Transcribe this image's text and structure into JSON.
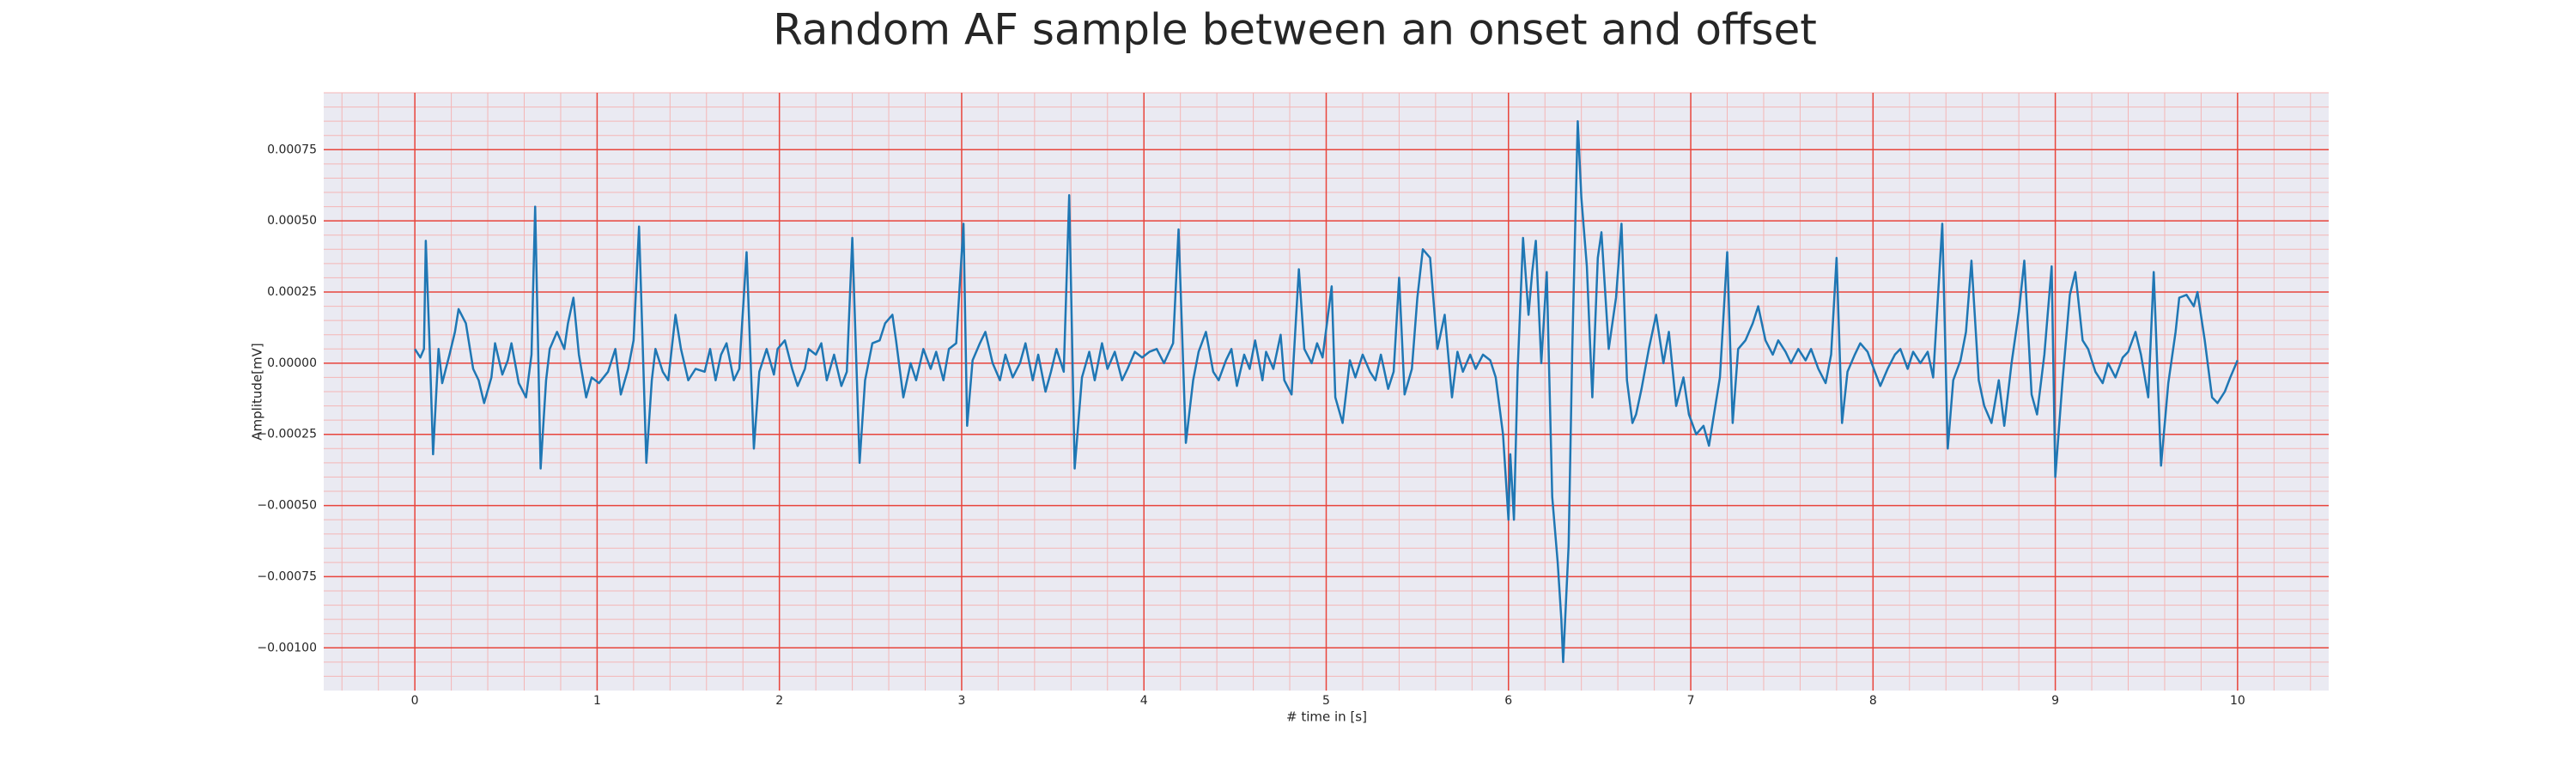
{
  "chart_data": {
    "type": "line",
    "title": "Random AF sample between an onset and offset",
    "xlabel": "# time in [s]",
    "ylabel": "Amplitude[mV]",
    "color": "#1f77b4",
    "grid": true,
    "minor_grid": true,
    "xlim": [
      -0.5,
      10.5
    ],
    "ylim": [
      -0.00115,
      0.00095
    ],
    "xticks": [
      0,
      1,
      2,
      3,
      4,
      5,
      6,
      7,
      8,
      9,
      10
    ],
    "yticks": [
      {
        "value": -0.001,
        "label": "−0.00100"
      },
      {
        "value": -0.00075,
        "label": "−0.00075"
      },
      {
        "value": -0.0005,
        "label": "−0.00050"
      },
      {
        "value": -0.00025,
        "label": "−0.00025"
      },
      {
        "value": 0,
        "label": "0.00000"
      },
      {
        "value": 0.00025,
        "label": "0.00025"
      },
      {
        "value": 0.0005,
        "label": "0.00050"
      },
      {
        "value": 0.00075,
        "label": "0.00075"
      }
    ],
    "x": [
      0,
      0.03,
      0.05,
      0.06,
      0.08,
      0.1,
      0.13,
      0.15,
      0.19,
      0.22,
      0.24,
      0.28,
      0.32,
      0.35,
      0.38,
      0.42,
      0.44,
      0.48,
      0.51,
      0.53,
      0.57,
      0.61,
      0.64,
      0.66,
      0.69,
      0.72,
      0.74,
      0.78,
      0.82,
      0.84,
      0.87,
      0.9,
      0.94,
      0.97,
      1.01,
      1.06,
      1.1,
      1.13,
      1.17,
      1.2,
      1.23,
      1.27,
      1.3,
      1.32,
      1.36,
      1.39,
      1.43,
      1.46,
      1.5,
      1.54,
      1.59,
      1.62,
      1.65,
      1.68,
      1.71,
      1.75,
      1.78,
      1.82,
      1.86,
      1.89,
      1.93,
      1.97,
      1.99,
      2.03,
      2.07,
      2.1,
      2.14,
      2.16,
      2.2,
      2.23,
      2.26,
      2.3,
      2.34,
      2.37,
      2.4,
      2.44,
      2.47,
      2.51,
      2.55,
      2.58,
      2.62,
      2.64,
      2.68,
      2.72,
      2.75,
      2.79,
      2.83,
      2.86,
      2.9,
      2.93,
      2.97,
      3.01,
      3.03,
      3.06,
      3.1,
      3.13,
      3.17,
      3.21,
      3.24,
      3.28,
      3.32,
      3.35,
      3.39,
      3.42,
      3.46,
      3.49,
      3.52,
      3.56,
      3.59,
      3.62,
      3.66,
      3.7,
      3.73,
      3.77,
      3.8,
      3.84,
      3.88,
      3.91,
      3.95,
      3.99,
      4.03,
      4.07,
      4.11,
      4.16,
      4.19,
      4.23,
      4.27,
      4.3,
      4.34,
      4.38,
      4.41,
      4.45,
      4.48,
      4.51,
      4.55,
      4.58,
      4.61,
      4.65,
      4.67,
      4.71,
      4.75,
      4.77,
      4.81,
      4.85,
      4.88,
      4.92,
      4.95,
      4.98,
      5.03,
      5.05,
      5.09,
      5.13,
      5.16,
      5.2,
      5.24,
      5.27,
      5.3,
      5.34,
      5.37,
      5.4,
      5.43,
      5.47,
      5.5,
      5.53,
      5.57,
      5.61,
      5.65,
      5.69,
      5.72,
      5.75,
      5.79,
      5.82,
      5.86,
      5.9,
      5.93,
      5.97,
      6.0,
      6.01,
      6.03,
      6.05,
      6.08,
      6.11,
      6.13,
      6.15,
      6.18,
      6.21,
      6.24,
      6.27,
      6.29,
      6.3,
      6.33,
      6.35,
      6.38,
      6.4,
      6.43,
      6.46,
      6.49,
      6.51,
      6.55,
      6.59,
      6.62,
      6.65,
      6.68,
      6.7,
      6.73,
      6.77,
      6.81,
      6.85,
      6.88,
      6.92,
      6.96,
      6.99,
      7.03,
      7.07,
      7.1,
      7.13,
      7.16,
      7.2,
      7.23,
      7.26,
      7.3,
      7.34,
      7.37,
      7.41,
      7.45,
      7.48,
      7.52,
      7.55,
      7.59,
      7.63,
      7.66,
      7.7,
      7.74,
      7.77,
      7.8,
      7.83,
      7.86,
      7.9,
      7.93,
      7.97,
      8.01,
      8.04,
      8.08,
      8.12,
      8.15,
      8.19,
      8.22,
      8.26,
      8.3,
      8.33,
      8.38,
      8.41,
      8.44,
      8.48,
      8.51,
      8.54,
      8.58,
      8.61,
      8.65,
      8.69,
      8.72,
      8.76,
      8.8,
      8.83,
      8.87,
      8.9,
      8.94,
      8.98,
      9.0,
      9.04,
      9.08,
      9.11,
      9.15,
      9.18,
      9.22,
      9.26,
      9.29,
      9.33,
      9.37,
      9.4,
      9.44,
      9.47,
      9.51,
      9.54,
      9.58,
      9.62,
      9.66,
      9.68,
      9.72,
      9.76,
      9.78,
      9.82,
      9.86,
      9.89,
      9.93,
      9.96,
      10.0
    ],
    "values": [
      5e-05,
      2e-05,
      5e-05,
      0.00043,
      8e-05,
      -0.00032,
      5e-05,
      -7e-05,
      3e-05,
      0.00011,
      0.00019,
      0.00014,
      -2e-05,
      -6e-05,
      -0.00014,
      -5e-05,
      7e-05,
      -4e-05,
      1e-05,
      7e-05,
      -7e-05,
      -0.00012,
      3e-05,
      0.00055,
      -0.00037,
      -6e-05,
      5e-05,
      0.00011,
      5e-05,
      0.00014,
      0.00023,
      3e-05,
      -0.00012,
      -5e-05,
      -7e-05,
      -3e-05,
      5e-05,
      -0.00011,
      -2e-05,
      8e-05,
      0.00048,
      -0.00035,
      -6e-05,
      5e-05,
      -3e-05,
      -6e-05,
      0.00017,
      5e-05,
      -6e-05,
      -2e-05,
      -3e-05,
      5e-05,
      -6e-05,
      3e-05,
      7e-05,
      -6e-05,
      -2e-05,
      0.00039,
      -0.0003,
      -3e-05,
      5e-05,
      -4e-05,
      5e-05,
      8e-05,
      -2e-05,
      -8e-05,
      -2e-05,
      5e-05,
      3e-05,
      7e-05,
      -6e-05,
      3e-05,
      -8e-05,
      -3e-05,
      0.00044,
      -0.00035,
      -6e-05,
      7e-05,
      8e-05,
      0.00014,
      0.00017,
      8e-05,
      -0.00012,
      0,
      -6e-05,
      5e-05,
      -2e-05,
      4e-05,
      -6e-05,
      5e-05,
      7e-05,
      0.00049,
      -0.00022,
      1e-05,
      7e-05,
      0.00011,
      0,
      -6e-05,
      3e-05,
      -5e-05,
      0,
      7e-05,
      -6e-05,
      3e-05,
      -0.0001,
      -3e-05,
      5e-05,
      -3e-05,
      0.00059,
      -0.00037,
      -5e-05,
      4e-05,
      -6e-05,
      7e-05,
      -2e-05,
      4e-05,
      -6e-05,
      -2e-05,
      4e-05,
      2e-05,
      4e-05,
      5e-05,
      0,
      7e-05,
      0.00047,
      -0.00028,
      -6e-05,
      4e-05,
      0.00011,
      -3e-05,
      -6e-05,
      1e-05,
      5e-05,
      -8e-05,
      3e-05,
      -2e-05,
      8e-05,
      -6e-05,
      4e-05,
      -2e-05,
      0.0001,
      -6e-05,
      -0.00011,
      0.00033,
      5e-05,
      0,
      7e-05,
      2e-05,
      0.00027,
      -0.00012,
      -0.00021,
      1e-05,
      -5e-05,
      3e-05,
      -3e-05,
      -6e-05,
      3e-05,
      -9e-05,
      -3e-05,
      0.0003,
      -0.00011,
      -2e-05,
      0.00023,
      0.0004,
      0.00037,
      5e-05,
      0.00017,
      -0.00012,
      4e-05,
      -3e-05,
      3e-05,
      -2e-05,
      3e-05,
      1e-05,
      -5e-05,
      -0.00025,
      -0.00055,
      -0.00032,
      -0.00055,
      -3e-05,
      0.00044,
      0.00017,
      0.00032,
      0.00043,
      0,
      0.00032,
      -0.00047,
      -0.0007,
      -0.0009,
      -0.00105,
      -0.00064,
      5e-05,
      0.00085,
      0.00058,
      0.00034,
      -0.00012,
      0.00037,
      0.00046,
      5e-05,
      0.00023,
      0.00049,
      -6e-05,
      -0.00021,
      -0.00018,
      -9e-05,
      5e-05,
      0.00017,
      0,
      0.00011,
      -0.00015,
      -5e-05,
      -0.00018,
      -0.00025,
      -0.00022,
      -0.00029,
      -0.00017,
      -5e-05,
      0.00039,
      -0.00021,
      5e-05,
      8e-05,
      0.00014,
      0.0002,
      8e-05,
      3e-05,
      8e-05,
      4e-05,
      0,
      5e-05,
      1e-05,
      5e-05,
      -2e-05,
      -7e-05,
      3e-05,
      0.00037,
      -0.00021,
      -3e-05,
      3e-05,
      7e-05,
      4e-05,
      -3e-05,
      -8e-05,
      -2e-05,
      3e-05,
      5e-05,
      -2e-05,
      4e-05,
      0,
      4e-05,
      -5e-05,
      0.00049,
      -0.0003,
      -6e-05,
      1e-05,
      0.00011,
      0.00036,
      -6e-05,
      -0.00015,
      -0.00021,
      -6e-05,
      -0.00022,
      0,
      0.00018,
      0.00036,
      -0.00011,
      -0.00018,
      3e-05,
      0.00034,
      -0.0004,
      -6e-05,
      0.00024,
      0.00032,
      8e-05,
      5e-05,
      -3e-05,
      -7e-05,
      0,
      -5e-05,
      2e-05,
      4e-05,
      0.00011,
      3e-05,
      -0.00012,
      0.00032,
      -0.00036,
      -7e-05,
      0.00011,
      0.00023,
      0.00024,
      0.0002,
      0.00025,
      8e-05,
      -0.00012,
      -0.00014,
      -0.0001,
      -5e-05,
      1e-05
    ]
  }
}
